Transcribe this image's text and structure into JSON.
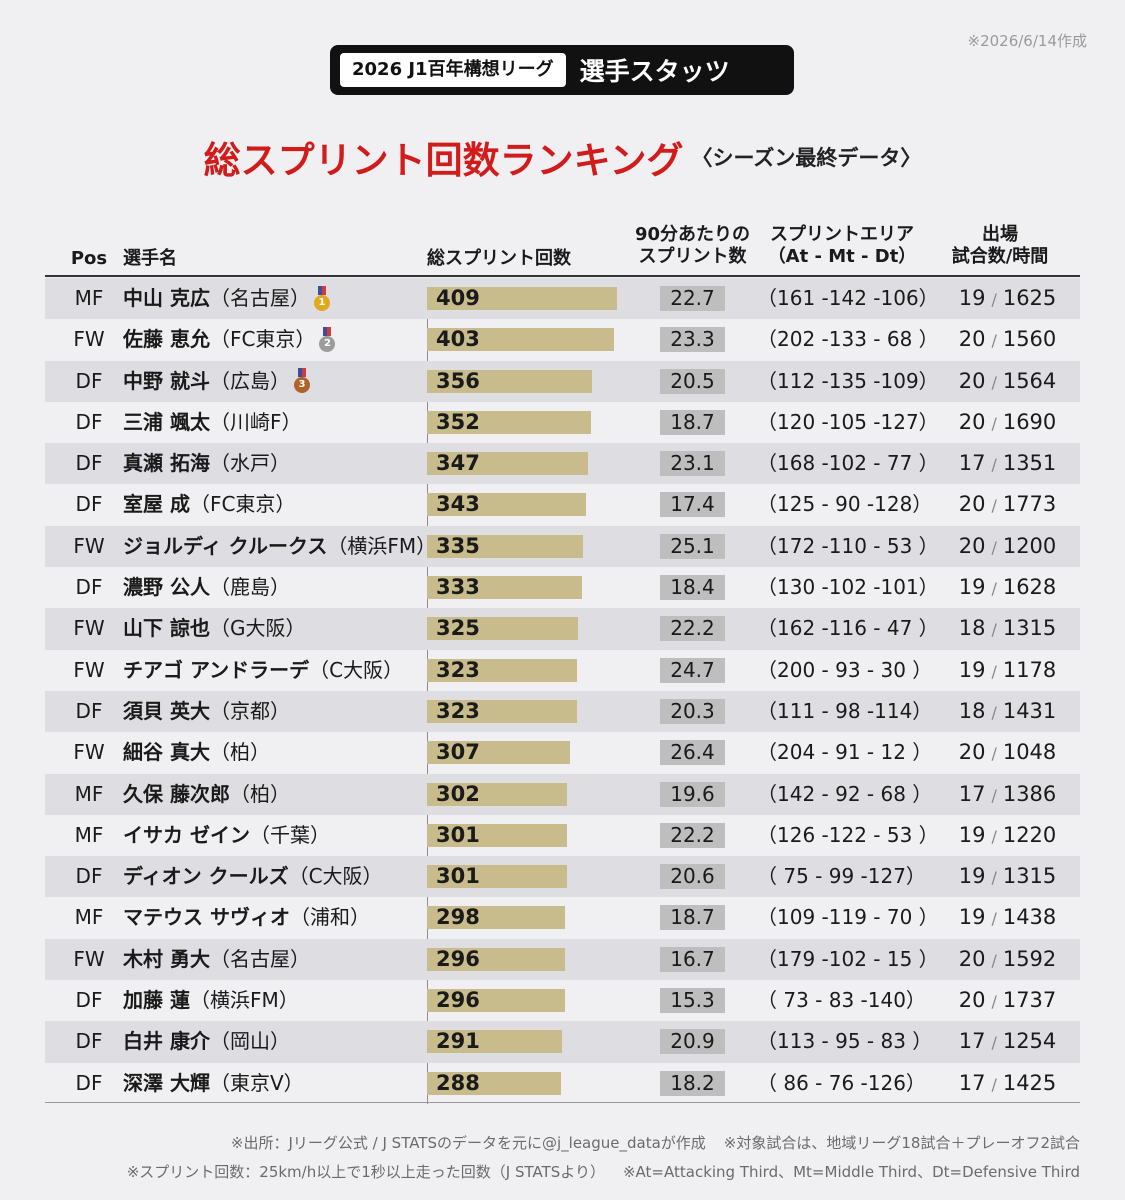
{
  "date_note": "※2026/6/14作成",
  "badge": {
    "league": "2026 J1百年構想リーグ",
    "stats": "選手スタッツ"
  },
  "title": {
    "main": "総スプリント回数ランキング",
    "sub": "〈シーズン最終データ〉"
  },
  "headers": {
    "pos": "Pos",
    "player": "選手名",
    "total": "総スプリント回数",
    "per90_line1": "90分あたりの",
    "per90_line2": "スプリント数",
    "area_line1": "スプリントエリア",
    "area_line2": "（At - Mt - Dt）",
    "apps_line1": "出場",
    "apps_line2": "試合数/時間"
  },
  "colors": {
    "title_red": "#d21c1c",
    "bar": "#c8bc8d",
    "gold": "#e0a91e",
    "silver": "#9c9c9c",
    "bronze": "#b0622b"
  },
  "bar_max": 409,
  "rows": [
    {
      "pos": "MF",
      "name": "中山 克広",
      "team": "（名古屋）",
      "medal": "gold",
      "medal_num": "1",
      "total": 409,
      "per90": "22.7",
      "area": "（161 -142 -106）",
      "games": "19",
      "minutes": "1625"
    },
    {
      "pos": "FW",
      "name": "佐藤 恵允",
      "team": "（FC東京）",
      "medal": "silver",
      "medal_num": "2",
      "total": 403,
      "per90": "23.3",
      "area": "（202 -133 - 68 ）",
      "games": "20",
      "minutes": "1560"
    },
    {
      "pos": "DF",
      "name": "中野 就斗",
      "team": "（広島）",
      "medal": "bronze",
      "medal_num": "3",
      "total": 356,
      "per90": "20.5",
      "area": "（112 -135 -109）",
      "games": "20",
      "minutes": "1564"
    },
    {
      "pos": "DF",
      "name": "三浦 颯太",
      "team": "（川崎F）",
      "medal": "",
      "medal_num": "",
      "total": 352,
      "per90": "18.7",
      "area": "（120 -105 -127）",
      "games": "20",
      "minutes": "1690"
    },
    {
      "pos": "DF",
      "name": "真瀬 拓海",
      "team": "（水戸）",
      "medal": "",
      "medal_num": "",
      "total": 347,
      "per90": "23.1",
      "area": "（168 -102 - 77 ）",
      "games": "17",
      "minutes": "1351"
    },
    {
      "pos": "DF",
      "name": "室屋 成",
      "team": "（FC東京）",
      "medal": "",
      "medal_num": "",
      "total": 343,
      "per90": "17.4",
      "area": "（125 - 90 -128）",
      "games": "20",
      "minutes": "1773"
    },
    {
      "pos": "FW",
      "name": "ジョルディ クルークス",
      "team": "（横浜FM）",
      "medal": "",
      "medal_num": "",
      "total": 335,
      "per90": "25.1",
      "area": "（172 -110 - 53 ）",
      "games": "20",
      "minutes": "1200"
    },
    {
      "pos": "DF",
      "name": "濃野 公人",
      "team": "（鹿島）",
      "medal": "",
      "medal_num": "",
      "total": 333,
      "per90": "18.4",
      "area": "（130 -102 -101）",
      "games": "19",
      "minutes": "1628"
    },
    {
      "pos": "FW",
      "name": "山下 諒也",
      "team": "（G大阪）",
      "medal": "",
      "medal_num": "",
      "total": 325,
      "per90": "22.2",
      "area": "（162 -116 - 47 ）",
      "games": "18",
      "minutes": "1315"
    },
    {
      "pos": "FW",
      "name": "チアゴ アンドラーデ",
      "team": "（C大阪）",
      "medal": "",
      "medal_num": "",
      "total": 323,
      "per90": "24.7",
      "area": "（200 - 93 - 30 ）",
      "games": "19",
      "minutes": "1178"
    },
    {
      "pos": "DF",
      "name": "須貝 英大",
      "team": "（京都）",
      "medal": "",
      "medal_num": "",
      "total": 323,
      "per90": "20.3",
      "area": "（111 - 98 -114）",
      "games": "18",
      "minutes": "1431"
    },
    {
      "pos": "FW",
      "name": "細谷 真大",
      "team": "（柏）",
      "medal": "",
      "medal_num": "",
      "total": 307,
      "per90": "26.4",
      "area": "（204 - 91 - 12 ）",
      "games": "20",
      "minutes": "1048"
    },
    {
      "pos": "MF",
      "name": "久保 藤次郎",
      "team": "（柏）",
      "medal": "",
      "medal_num": "",
      "total": 302,
      "per90": "19.6",
      "area": "（142 - 92 - 68 ）",
      "games": "17",
      "minutes": "1386"
    },
    {
      "pos": "MF",
      "name": "イサカ ゼイン",
      "team": "（千葉）",
      "medal": "",
      "medal_num": "",
      "total": 301,
      "per90": "22.2",
      "area": "（126 -122 - 53 ）",
      "games": "19",
      "minutes": "1220"
    },
    {
      "pos": "DF",
      "name": "ディオン クールズ",
      "team": "（C大阪）",
      "medal": "",
      "medal_num": "",
      "total": 301,
      "per90": "20.6",
      "area": "（ 75 - 99 -127）",
      "games": "19",
      "minutes": "1315"
    },
    {
      "pos": "MF",
      "name": "マテウス サヴィオ",
      "team": "（浦和）",
      "medal": "",
      "medal_num": "",
      "total": 298,
      "per90": "18.7",
      "area": "（109 -119 - 70 ）",
      "games": "19",
      "minutes": "1438"
    },
    {
      "pos": "FW",
      "name": "木村 勇大",
      "team": "（名古屋）",
      "medal": "",
      "medal_num": "",
      "total": 296,
      "per90": "16.7",
      "area": "（179 -102 - 15 ）",
      "games": "20",
      "minutes": "1592"
    },
    {
      "pos": "DF",
      "name": "加藤 蓮",
      "team": "（横浜FM）",
      "medal": "",
      "medal_num": "",
      "total": 296,
      "per90": "15.3",
      "area": "（ 73 - 83 -140）",
      "games": "20",
      "minutes": "1737"
    },
    {
      "pos": "DF",
      "name": "白井 康介",
      "team": "（岡山）",
      "medal": "",
      "medal_num": "",
      "total": 291,
      "per90": "20.9",
      "area": "（113 - 95 - 83 ）",
      "games": "17",
      "minutes": "1254"
    },
    {
      "pos": "DF",
      "name": "深澤 大輝",
      "team": "（東京V）",
      "medal": "",
      "medal_num": "",
      "total": 288,
      "per90": "18.2",
      "area": "（ 86 - 76 -126）",
      "games": "17",
      "minutes": "1425"
    }
  ],
  "footnotes": {
    "line1a": "※出所：Jリーグ公式 / J STATSのデータを元に@j_league_dataが作成",
    "line1b": "※対象試合は、地域リーグ18試合＋プレーオフ2試合",
    "line2a": "※スプリント回数：25km/h以上で1秒以上走った回数（J STATSより）",
    "line2b": "※At=Attacking Third、Mt=Middle Third、Dt=Defensive Third"
  }
}
